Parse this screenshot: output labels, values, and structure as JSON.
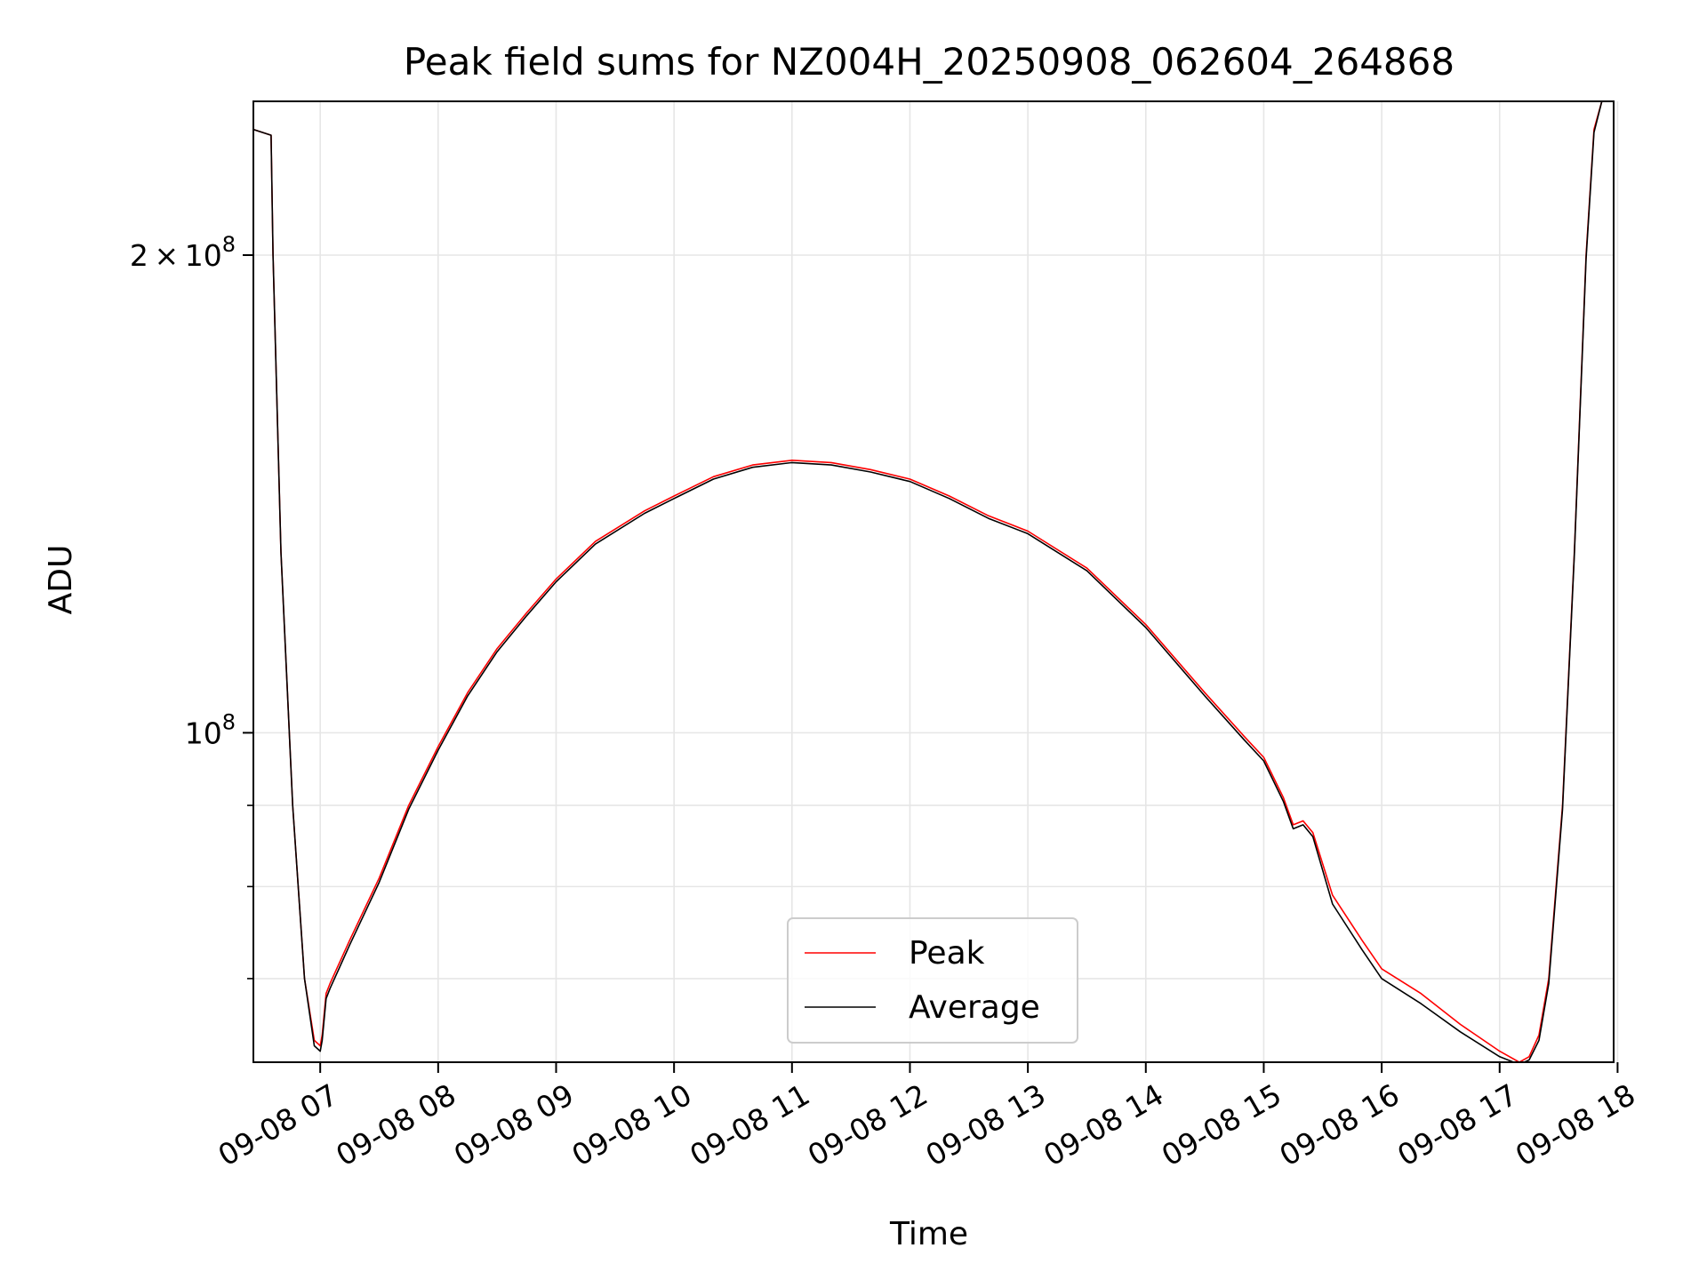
{
  "chart_data": {
    "type": "line",
    "title": "Peak field sums for NZ004H_20250908_062604_264868",
    "xlabel": "Time",
    "ylabel": "ADU",
    "x_range": [
      "2025-09-08 06:26",
      "2025-09-08 17:58"
    ],
    "y_range": [
      62000000,
      250000000
    ],
    "y_scale": "log",
    "grid": true,
    "legend_position": "lower center",
    "x_ticks": [
      {
        "value": "2025-09-08 07:00",
        "label": "09-08 07"
      },
      {
        "value": "2025-09-08 08:00",
        "label": "09-08 08"
      },
      {
        "value": "2025-09-08 09:00",
        "label": "09-08 09"
      },
      {
        "value": "2025-09-08 10:00",
        "label": "09-08 10"
      },
      {
        "value": "2025-09-08 11:00",
        "label": "09-08 11"
      },
      {
        "value": "2025-09-08 12:00",
        "label": "09-08 12"
      },
      {
        "value": "2025-09-08 13:00",
        "label": "09-08 13"
      },
      {
        "value": "2025-09-08 14:00",
        "label": "09-08 14"
      },
      {
        "value": "2025-09-08 15:00",
        "label": "09-08 15"
      },
      {
        "value": "2025-09-08 16:00",
        "label": "09-08 16"
      },
      {
        "value": "2025-09-08 17:00",
        "label": "09-08 17"
      },
      {
        "value": "2025-09-08 18:00",
        "label": "09-08 18"
      }
    ],
    "y_major_ticks": [
      {
        "value": 100000000,
        "base": "10",
        "exp": "8",
        "coef": ""
      },
      {
        "value": 200000000,
        "base": "10",
        "exp": "8",
        "coef": "2"
      }
    ],
    "y_minor_ticks": [
      60000000,
      70000000,
      80000000,
      90000000
    ],
    "series": [
      {
        "name": "Peak",
        "color": "#ff0000",
        "points": [
          [
            "2025-09-08 06:26",
            240000000
          ],
          [
            "2025-09-08 06:35",
            238000000
          ],
          [
            "2025-09-08 06:36",
            200000000
          ],
          [
            "2025-09-08 06:40",
            130000000
          ],
          [
            "2025-09-08 06:46",
            90000000
          ],
          [
            "2025-09-08 06:52",
            70000000
          ],
          [
            "2025-09-08 06:57",
            64000000
          ],
          [
            "2025-09-08 07:00",
            63500000
          ],
          [
            "2025-09-08 07:01",
            64500000
          ],
          [
            "2025-09-08 07:03",
            68500000
          ],
          [
            "2025-09-08 07:05",
            69500000
          ],
          [
            "2025-09-08 07:15",
            74000000
          ],
          [
            "2025-09-08 07:30",
            81000000
          ],
          [
            "2025-09-08 07:45",
            90000000
          ],
          [
            "2025-09-08 08:00",
            98000000
          ],
          [
            "2025-09-08 08:15",
            106000000
          ],
          [
            "2025-09-08 08:30",
            113000000
          ],
          [
            "2025-09-08 08:45",
            119000000
          ],
          [
            "2025-09-08 09:00",
            125000000
          ],
          [
            "2025-09-08 09:20",
            132000000
          ],
          [
            "2025-09-08 09:45",
            138000000
          ],
          [
            "2025-09-08 10:00",
            141000000
          ],
          [
            "2025-09-08 10:20",
            145000000
          ],
          [
            "2025-09-08 10:40",
            147500000
          ],
          [
            "2025-09-08 11:00",
            148500000
          ],
          [
            "2025-09-08 11:20",
            148000000
          ],
          [
            "2025-09-08 11:40",
            146500000
          ],
          [
            "2025-09-08 12:00",
            144500000
          ],
          [
            "2025-09-08 12:20",
            141000000
          ],
          [
            "2025-09-08 12:40",
            137000000
          ],
          [
            "2025-09-08 13:00",
            134000000
          ],
          [
            "2025-09-08 13:30",
            127000000
          ],
          [
            "2025-09-08 14:00",
            117000000
          ],
          [
            "2025-09-08 14:30",
            106000000
          ],
          [
            "2025-09-08 14:50",
            99500000
          ],
          [
            "2025-09-08 15:00",
            96500000
          ],
          [
            "2025-09-08 15:10",
            91000000
          ],
          [
            "2025-09-08 15:15",
            87500000
          ],
          [
            "2025-09-08 15:20",
            88000000
          ],
          [
            "2025-09-08 15:25",
            86500000
          ],
          [
            "2025-09-08 15:35",
            79000000
          ],
          [
            "2025-09-08 15:50",
            74000000
          ],
          [
            "2025-09-08 16:00",
            71000000
          ],
          [
            "2025-09-08 16:20",
            68500000
          ],
          [
            "2025-09-08 16:40",
            65500000
          ],
          [
            "2025-09-08 17:00",
            63000000
          ],
          [
            "2025-09-08 17:10",
            62000000
          ],
          [
            "2025-09-08 17:15",
            62500000
          ],
          [
            "2025-09-08 17:20",
            64500000
          ],
          [
            "2025-09-08 17:25",
            70000000
          ],
          [
            "2025-09-08 17:32",
            90000000
          ],
          [
            "2025-09-08 17:38",
            130000000
          ],
          [
            "2025-09-08 17:44",
            200000000
          ],
          [
            "2025-09-08 17:48",
            240000000
          ],
          [
            "2025-09-08 17:52",
            250000000
          ]
        ]
      },
      {
        "name": "Average",
        "color": "#000000",
        "points": [
          [
            "2025-09-08 06:26",
            240000000
          ],
          [
            "2025-09-08 06:35",
            238000000
          ],
          [
            "2025-09-08 06:36",
            200000000
          ],
          [
            "2025-09-08 06:40",
            130000000
          ],
          [
            "2025-09-08 06:46",
            90000000
          ],
          [
            "2025-09-08 06:52",
            70000000
          ],
          [
            "2025-09-08 06:57",
            63500000
          ],
          [
            "2025-09-08 07:00",
            63000000
          ],
          [
            "2025-09-08 07:01",
            64000000
          ],
          [
            "2025-09-08 07:03",
            68000000
          ],
          [
            "2025-09-08 07:05",
            69000000
          ],
          [
            "2025-09-08 07:15",
            73500000
          ],
          [
            "2025-09-08 07:30",
            80500000
          ],
          [
            "2025-09-08 07:45",
            89500000
          ],
          [
            "2025-09-08 08:00",
            97500000
          ],
          [
            "2025-09-08 08:15",
            105500000
          ],
          [
            "2025-09-08 08:30",
            112500000
          ],
          [
            "2025-09-08 08:45",
            118500000
          ],
          [
            "2025-09-08 09:00",
            124500000
          ],
          [
            "2025-09-08 09:20",
            131500000
          ],
          [
            "2025-09-08 09:45",
            137500000
          ],
          [
            "2025-09-08 10:00",
            140500000
          ],
          [
            "2025-09-08 10:20",
            144500000
          ],
          [
            "2025-09-08 10:40",
            147000000
          ],
          [
            "2025-09-08 11:00",
            148000000
          ],
          [
            "2025-09-08 11:20",
            147500000
          ],
          [
            "2025-09-08 11:40",
            146000000
          ],
          [
            "2025-09-08 12:00",
            144000000
          ],
          [
            "2025-09-08 12:20",
            140500000
          ],
          [
            "2025-09-08 12:40",
            136500000
          ],
          [
            "2025-09-08 13:00",
            133500000
          ],
          [
            "2025-09-08 13:30",
            126500000
          ],
          [
            "2025-09-08 14:00",
            116500000
          ],
          [
            "2025-09-08 14:30",
            105500000
          ],
          [
            "2025-09-08 14:50",
            99000000
          ],
          [
            "2025-09-08 15:00",
            96000000
          ],
          [
            "2025-09-08 15:10",
            90500000
          ],
          [
            "2025-09-08 15:15",
            87000000
          ],
          [
            "2025-09-08 15:20",
            87500000
          ],
          [
            "2025-09-08 15:25",
            86000000
          ],
          [
            "2025-09-08 15:35",
            78000000
          ],
          [
            "2025-09-08 15:50",
            73000000
          ],
          [
            "2025-09-08 16:00",
            70000000
          ],
          [
            "2025-09-08 16:20",
            67500000
          ],
          [
            "2025-09-08 16:40",
            64800000
          ],
          [
            "2025-09-08 17:00",
            62500000
          ],
          [
            "2025-09-08 17:10",
            61800000
          ],
          [
            "2025-09-08 17:15",
            62200000
          ],
          [
            "2025-09-08 17:20",
            64000000
          ],
          [
            "2025-09-08 17:25",
            69500000
          ],
          [
            "2025-09-08 17:32",
            89500000
          ],
          [
            "2025-09-08 17:38",
            129500000
          ],
          [
            "2025-09-08 17:44",
            199000000
          ],
          [
            "2025-09-08 17:48",
            239000000
          ],
          [
            "2025-09-08 17:52",
            250000000
          ]
        ]
      }
    ]
  }
}
